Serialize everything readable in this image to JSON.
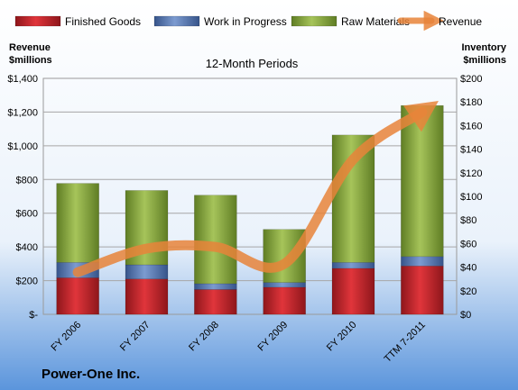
{
  "chart_data": {
    "type": "bar",
    "stacked": true,
    "subtitle": "12-Month Periods",
    "company": "Power-One Inc.",
    "categories": [
      "FY 2006",
      "FY 2007",
      "FY 2008",
      "FY 2009",
      "FY 2010",
      "TTM 7-2011"
    ],
    "left_axis": {
      "title_line1": "Revenue",
      "title_line2": "$millions",
      "ylim": [
        0,
        1400
      ],
      "ticks": [
        "$-",
        "$200",
        "$400",
        "$600",
        "$800",
        "$1,000",
        "$1,200",
        "$1,400"
      ]
    },
    "right_axis": {
      "title_line1": "Inventory",
      "title_line2": "$millions",
      "ylim": [
        0,
        200
      ],
      "ticks": [
        "$0",
        "$20",
        "$40",
        "$60",
        "$80",
        "$100",
        "$120",
        "$140",
        "$160",
        "$180",
        "$200"
      ]
    },
    "series": [
      {
        "name": "Finished Goods",
        "axis": "right",
        "color": "#c8242b",
        "values": [
          31,
          30,
          21,
          23,
          39,
          41
        ]
      },
      {
        "name": "Work in Progress",
        "axis": "right",
        "color": "#4f6fa8",
        "values": [
          13,
          12,
          5,
          4,
          5,
          8
        ]
      },
      {
        "name": "Raw Materials",
        "axis": "right",
        "color": "#8cac3e",
        "values": [
          67,
          63,
          75,
          45,
          108,
          128
        ]
      }
    ],
    "line_series": {
      "name": "Revenue",
      "axis": "left",
      "color": "#e8843a",
      "values": [
        250,
        390,
        400,
        300,
        920,
        1200
      ]
    },
    "legend_position": "top",
    "grid": true
  }
}
